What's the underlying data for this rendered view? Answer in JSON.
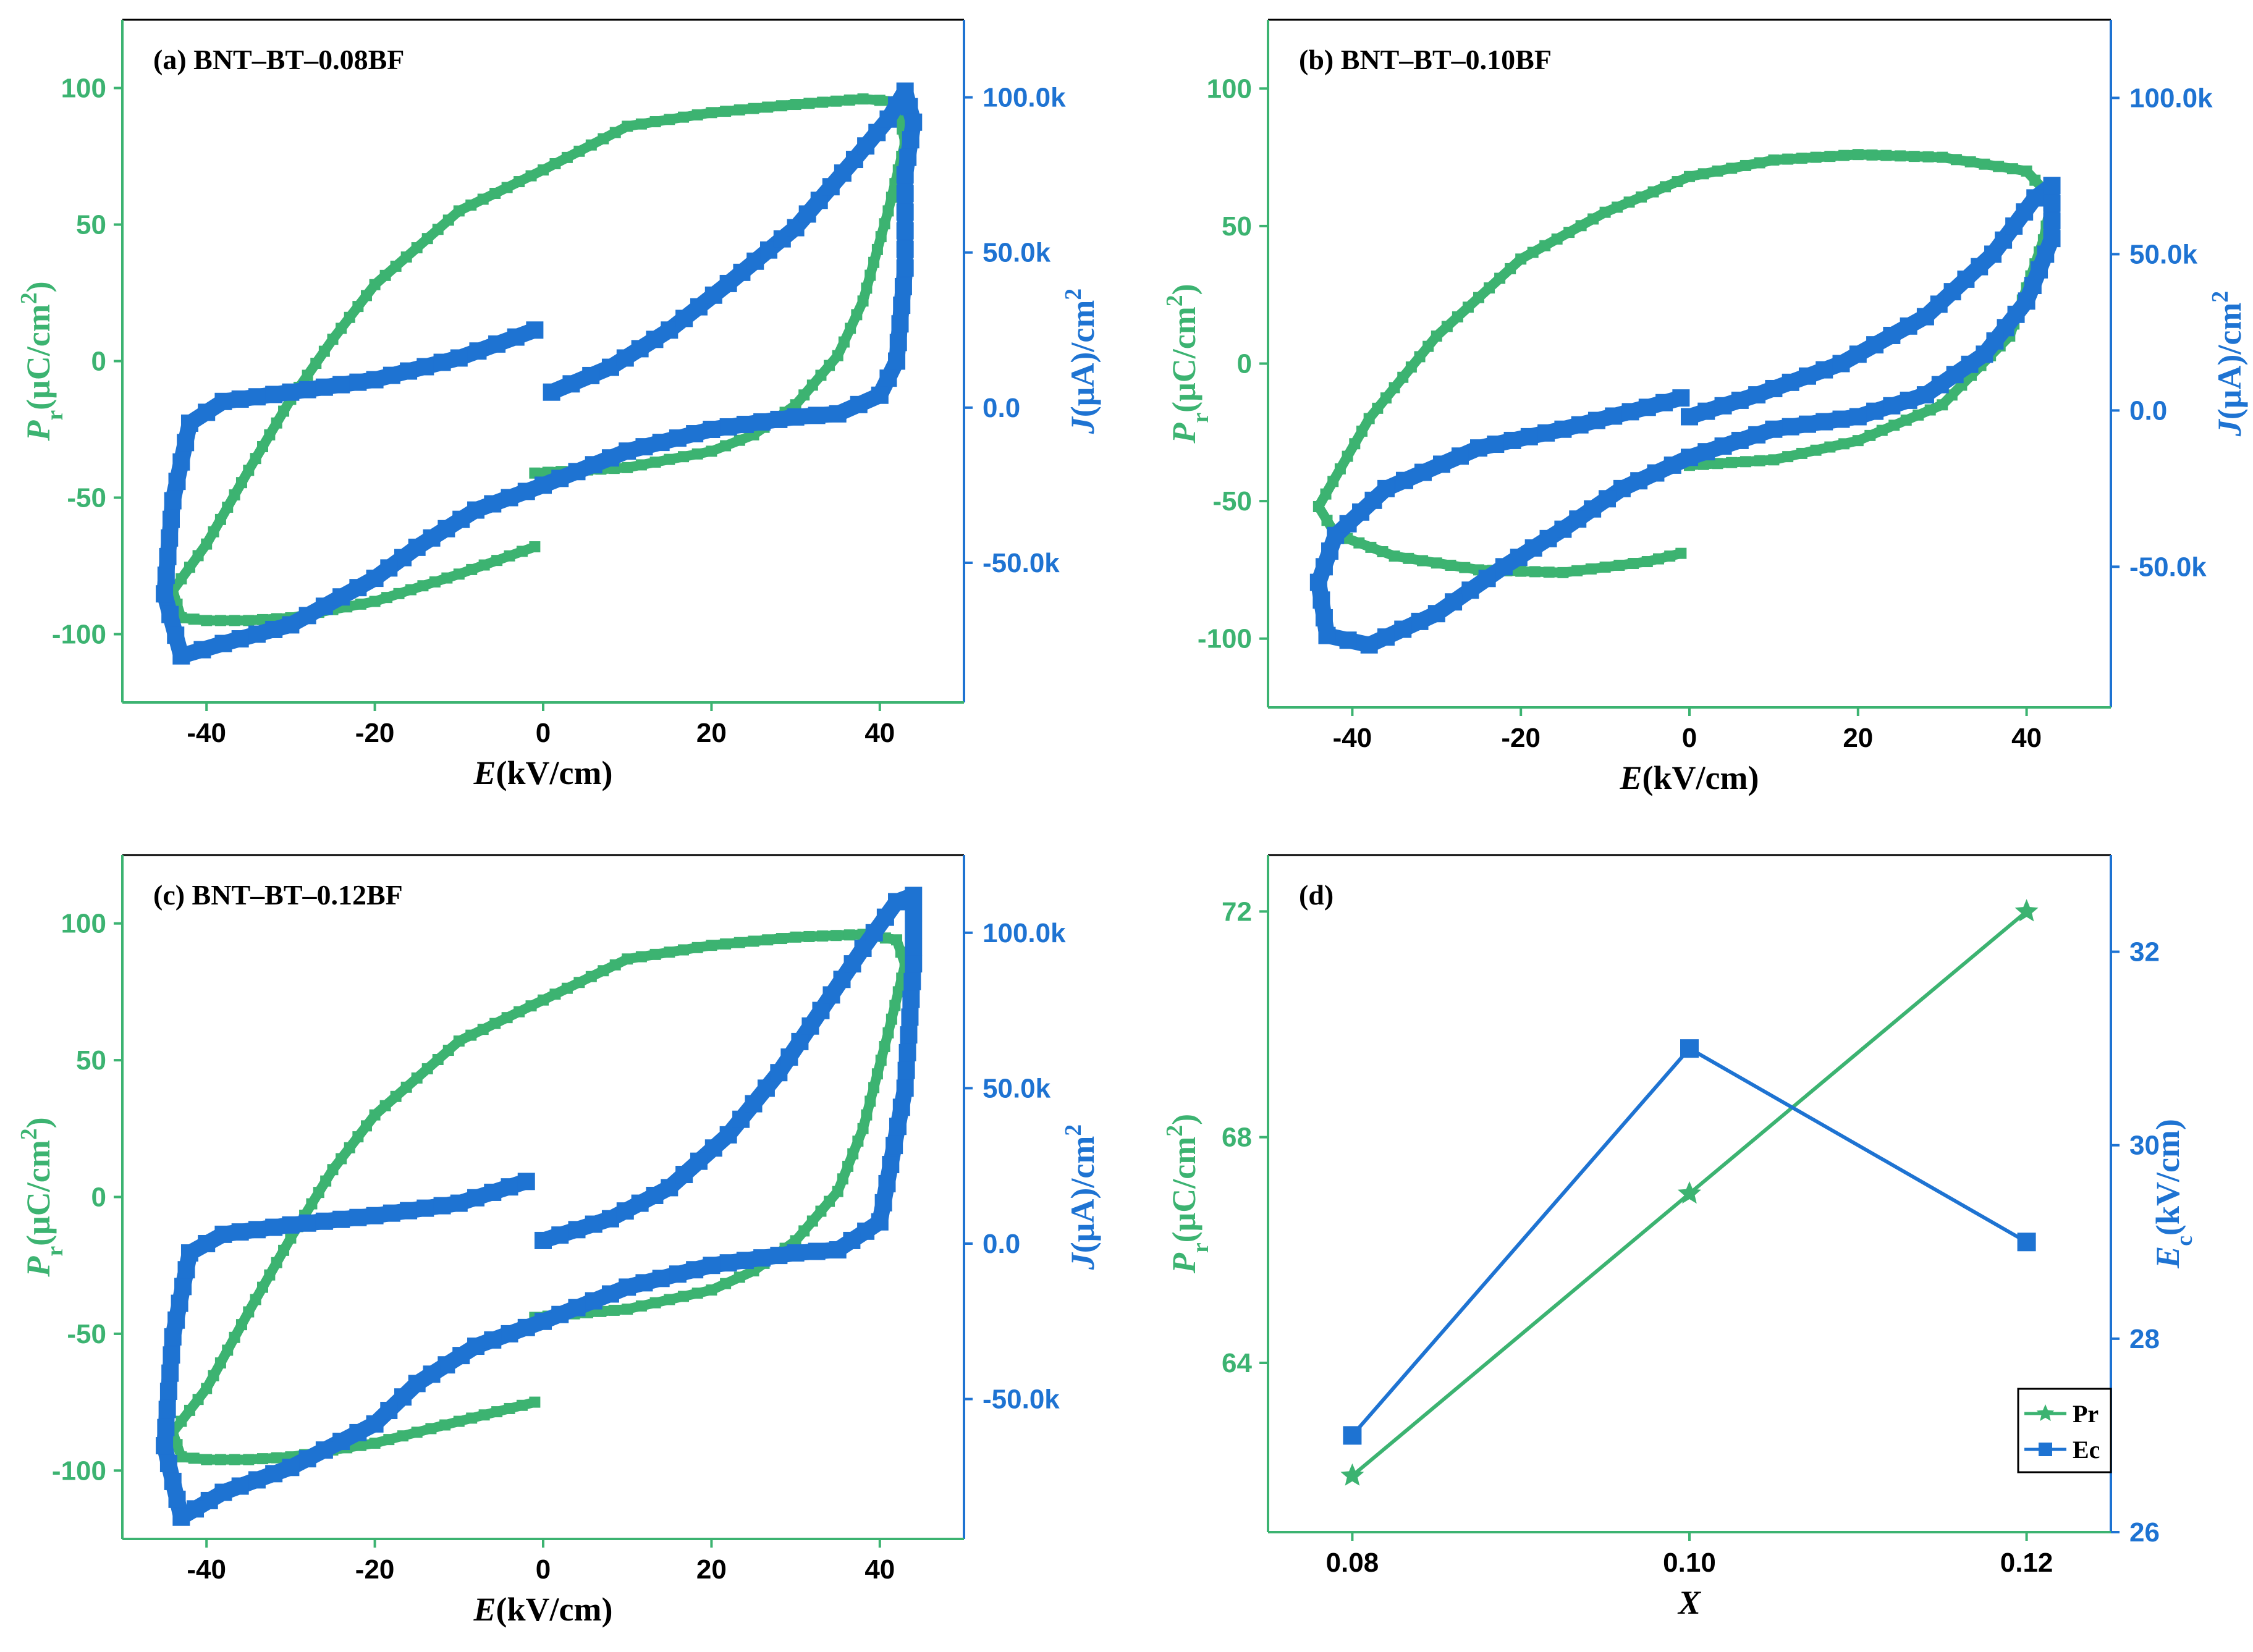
{
  "colors": {
    "p_series": "#3cb371",
    "j_series": "#1e73d2",
    "axis_top": "#000000"
  },
  "chart_data": [
    {
      "id": "a",
      "type": "line",
      "title": "(a) BNT–BT–0.08BF",
      "xlabel": "E(kV/cm)",
      "ylabel_left": "Pr(μC/cm2)",
      "ylabel_right": "J(μA)/cm2",
      "xlim": [
        -50,
        50
      ],
      "ylim_left": [
        -125,
        125
      ],
      "ylim_right": [
        -95000,
        125000
      ],
      "xticks": [
        -40,
        -20,
        0,
        20,
        40
      ],
      "yticks_left": [
        -100,
        -50,
        0,
        50,
        100
      ],
      "yticks_right": [
        -50000,
        0,
        50000,
        100000
      ],
      "yticklabels_right": [
        "-50.0k",
        "0.0",
        "50.0k",
        "100.0k"
      ],
      "grid": false,
      "series": [
        {
          "axis": "left",
          "marker": "square",
          "points": [
            [
              -1,
              -41
            ],
            [
              10,
              -39
            ],
            [
              20,
              -33
            ],
            [
              25,
              -27
            ],
            [
              30,
              -16
            ],
            [
              35,
              2
            ],
            [
              38,
              22
            ],
            [
              41,
              55
            ],
            [
              43,
              80
            ],
            [
              42,
              95
            ],
            [
              38,
              96
            ],
            [
              30,
              94
            ],
            [
              20,
              91
            ],
            [
              10,
              86
            ],
            [
              0,
              70
            ],
            [
              -10,
              55
            ],
            [
              -20,
              28
            ],
            [
              -25,
              8
            ],
            [
              -30,
              -14
            ],
            [
              -35,
              -40
            ],
            [
              -40,
              -67
            ],
            [
              -44,
              -84
            ],
            [
              -43,
              -94
            ],
            [
              -40,
              -95
            ],
            [
              -35,
              -95
            ],
            [
              -30,
              -94
            ],
            [
              -20,
              -88
            ],
            [
              -10,
              -78
            ],
            [
              -1,
              -68
            ]
          ]
        },
        {
          "axis": "right",
          "marker": "square",
          "points": [
            [
              1,
              5000
            ],
            [
              8,
              13000
            ],
            [
              15,
              25000
            ],
            [
              22,
              40000
            ],
            [
              30,
              58000
            ],
            [
              37,
              80000
            ],
            [
              41,
              93000
            ],
            [
              43,
              102000
            ],
            [
              44,
              92000
            ],
            [
              43,
              75000
            ],
            [
              43,
              45000
            ],
            [
              42,
              15000
            ],
            [
              40,
              4000
            ],
            [
              35,
              -2000
            ],
            [
              30,
              -3000
            ],
            [
              20,
              -7000
            ],
            [
              10,
              -14000
            ],
            [
              0,
              -25000
            ],
            [
              -8,
              -33000
            ],
            [
              -15,
              -45000
            ],
            [
              -20,
              -55000
            ],
            [
              -30,
              -70000
            ],
            [
              -38,
              -76000
            ],
            [
              -43,
              -80000
            ],
            [
              -45,
              -60000
            ],
            [
              -44,
              -30000
            ],
            [
              -42,
              -5000
            ],
            [
              -38,
              2000
            ],
            [
              -30,
              5000
            ],
            [
              -20,
              9000
            ],
            [
              -10,
              16000
            ],
            [
              -1,
              25000
            ]
          ]
        }
      ]
    },
    {
      "id": "b",
      "type": "line",
      "title": "(b) BNT–BT–0.10BF",
      "xlabel": "E(kV/cm)",
      "ylabel_left": "Pr(μC/cm2)",
      "ylabel_right": "J(μA)/cm2",
      "xlim": [
        -50,
        50
      ],
      "ylim_left": [
        -125,
        125
      ],
      "ylim_right": [
        -95000,
        125000
      ],
      "xticks": [
        -40,
        -20,
        0,
        20,
        40
      ],
      "yticks_left": [
        -100,
        -50,
        0,
        50,
        100
      ],
      "yticks_right": [
        -50000,
        0,
        50000,
        100000
      ],
      "yticklabels_right": [
        "-50.0k",
        "0.0",
        "50.0k",
        "100.0k"
      ],
      "grid": false,
      "series": [
        {
          "axis": "left",
          "marker": "square",
          "points": [
            [
              0,
              -37
            ],
            [
              10,
              -35
            ],
            [
              20,
              -28
            ],
            [
              30,
              -15
            ],
            [
              38,
              10
            ],
            [
              42,
              45
            ],
            [
              43,
              60
            ],
            [
              40,
              70
            ],
            [
              30,
              75
            ],
            [
              20,
              76
            ],
            [
              10,
              74
            ],
            [
              0,
              68
            ],
            [
              -10,
              55
            ],
            [
              -20,
              38
            ],
            [
              -30,
              10
            ],
            [
              -38,
              -20
            ],
            [
              -44,
              -52
            ],
            [
              -42,
              -62
            ],
            [
              -35,
              -70
            ],
            [
              -25,
              -75
            ],
            [
              -15,
              -76
            ],
            [
              -5,
              -72
            ],
            [
              -1,
              -69
            ]
          ]
        },
        {
          "axis": "right",
          "marker": "square",
          "points": [
            [
              0,
              -2000
            ],
            [
              8,
              5000
            ],
            [
              18,
              15000
            ],
            [
              28,
              30000
            ],
            [
              36,
              50000
            ],
            [
              41,
              68000
            ],
            [
              43,
              72000
            ],
            [
              43,
              55000
            ],
            [
              40,
              35000
            ],
            [
              35,
              18000
            ],
            [
              28,
              5000
            ],
            [
              20,
              -2000
            ],
            [
              10,
              -6000
            ],
            [
              0,
              -15000
            ],
            [
              -8,
              -25000
            ],
            [
              -15,
              -38000
            ],
            [
              -22,
              -50000
            ],
            [
              -30,
              -65000
            ],
            [
              -38,
              -75000
            ],
            [
              -43,
              -72000
            ],
            [
              -44,
              -55000
            ],
            [
              -42,
              -40000
            ],
            [
              -36,
              -25000
            ],
            [
              -25,
              -12000
            ],
            [
              -15,
              -6000
            ],
            [
              -5,
              1000
            ],
            [
              -1,
              4000
            ]
          ]
        }
      ]
    },
    {
      "id": "c",
      "type": "line",
      "title": "(c) BNT–BT–0.12BF",
      "xlabel": "E(kV/cm)",
      "ylabel_left": "Pr(μC/cm2)",
      "ylabel_right": "J(μA)/cm2",
      "xlim": [
        -50,
        50
      ],
      "ylim_left": [
        -125,
        125
      ],
      "ylim_right": [
        -95000,
        125000
      ],
      "xticks": [
        -40,
        -20,
        0,
        20,
        40
      ],
      "yticks_left": [
        -100,
        -50,
        0,
        50,
        100
      ],
      "yticks_right": [
        -50000,
        0,
        50000,
        100000
      ],
      "yticklabels_right": [
        "-50.0k",
        "0.0",
        "50.0k",
        "100.0k"
      ],
      "grid": false,
      "series": [
        {
          "axis": "left",
          "marker": "square",
          "points": [
            [
              -1,
              -44
            ],
            [
              10,
              -41
            ],
            [
              20,
              -34
            ],
            [
              25,
              -27
            ],
            [
              30,
              -16
            ],
            [
              35,
              2
            ],
            [
              38,
              25
            ],
            [
              41,
              60
            ],
            [
              43,
              85
            ],
            [
              42,
              94
            ],
            [
              38,
              96
            ],
            [
              30,
              95
            ],
            [
              20,
              92
            ],
            [
              10,
              87
            ],
            [
              0,
              72
            ],
            [
              -10,
              57
            ],
            [
              -20,
              30
            ],
            [
              -25,
              10
            ],
            [
              -30,
              -15
            ],
            [
              -35,
              -42
            ],
            [
              -40,
              -70
            ],
            [
              -44,
              -86
            ],
            [
              -43,
              -95
            ],
            [
              -40,
              -96
            ],
            [
              -35,
              -96
            ],
            [
              -30,
              -95
            ],
            [
              -20,
              -90
            ],
            [
              -10,
              -82
            ],
            [
              -1,
              -75
            ]
          ]
        },
        {
          "axis": "right",
          "marker": "square",
          "points": [
            [
              0,
              1000
            ],
            [
              8,
              8000
            ],
            [
              15,
              18000
            ],
            [
              22,
              35000
            ],
            [
              28,
              55000
            ],
            [
              33,
              75000
            ],
            [
              38,
              95000
            ],
            [
              42,
              110000
            ],
            [
              44,
              112000
            ],
            [
              44,
              90000
            ],
            [
              43,
              50000
            ],
            [
              40,
              7000
            ],
            [
              35,
              -2000
            ],
            [
              30,
              -3000
            ],
            [
              20,
              -7000
            ],
            [
              10,
              -14000
            ],
            [
              0,
              -25000
            ],
            [
              -8,
              -33000
            ],
            [
              -15,
              -45000
            ],
            [
              -20,
              -58000
            ],
            [
              -30,
              -72000
            ],
            [
              -38,
              -80000
            ],
            [
              -43,
              -88000
            ],
            [
              -45,
              -65000
            ],
            [
              -44,
              -30000
            ],
            [
              -42,
              -3000
            ],
            [
              -38,
              3000
            ],
            [
              -30,
              6000
            ],
            [
              -20,
              9000
            ],
            [
              -10,
              13000
            ],
            [
              -2,
              20000
            ]
          ]
        }
      ]
    },
    {
      "id": "d",
      "type": "line",
      "title": "(d)",
      "xlabel": "X",
      "ylabel_left": "Pr(μC/cm2)",
      "ylabel_right": "Ec(kV/cm)",
      "xlim": [
        0.075,
        0.125
      ],
      "ylim_left": [
        61,
        73
      ],
      "ylim_right": [
        26,
        33
      ],
      "xticks": [
        0.08,
        0.1,
        0.12
      ],
      "xticklabels": [
        "0.08",
        "0.10",
        "0.12"
      ],
      "yticks_left": [
        64,
        68,
        72
      ],
      "yticks_right": [
        26,
        28,
        30,
        32
      ],
      "grid": false,
      "legend": {
        "position": "bottom-right",
        "entries": [
          "Pr",
          "Ec"
        ]
      },
      "series": [
        {
          "name": "Pr",
          "axis": "left",
          "marker": "star",
          "x": [
            0.08,
            0.1,
            0.12
          ],
          "y": [
            62,
            67,
            72
          ]
        },
        {
          "name": "Ec",
          "axis": "right",
          "marker": "square",
          "x": [
            0.08,
            0.1,
            0.12
          ],
          "y": [
            27,
            31,
            29
          ]
        }
      ]
    }
  ]
}
